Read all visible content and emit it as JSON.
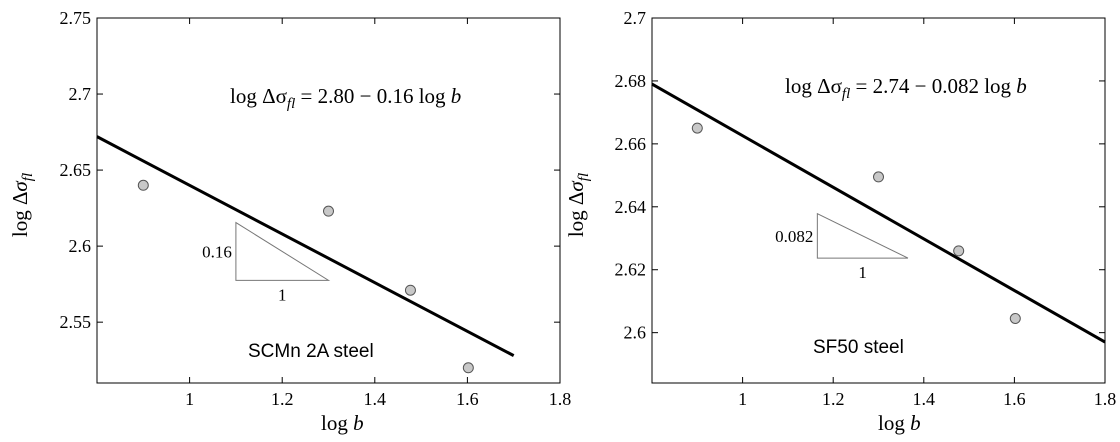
{
  "chart_data": [
    {
      "type": "scatter",
      "title": "",
      "xlabel": "log b",
      "ylabel": "log Δσ_fl",
      "xlim": [
        0.8,
        1.8
      ],
      "ylim": [
        2.51,
        2.75
      ],
      "xticks": [
        1,
        1.2,
        1.4,
        1.6,
        1.8
      ],
      "yticks": [
        2.55,
        2.6,
        2.65,
        2.7,
        2.75
      ],
      "xtick_labels": [
        "1",
        "1.2",
        "1.4",
        "1.6",
        "1.8"
      ],
      "ytick_labels": [
        "2.55",
        "2.6",
        "2.65",
        "2.7",
        "2.75"
      ],
      "points": [
        {
          "x": 0.9,
          "y": 2.64
        },
        {
          "x": 1.3,
          "y": 2.623
        },
        {
          "x": 1.477,
          "y": 2.571
        },
        {
          "x": 1.602,
          "y": 2.52
        }
      ],
      "fit_line": {
        "x": [
          0.8,
          1.7
        ],
        "y": [
          2.672,
          2.528
        ]
      },
      "equation": {
        "lhs": "log Δσ",
        "sub": "fl",
        "rhs": " = 2.80 − 0.16 log ",
        "var": "b"
      },
      "slope_triangle": {
        "x0": 1.1,
        "x1": 1.3,
        "y_top": 2.6155,
        "y_base": 2.5775,
        "rise_label": "0.16",
        "run_label": "1"
      },
      "annotation": "SCMn 2A steel",
      "grid": false
    },
    {
      "type": "scatter",
      "title": "",
      "xlabel": "log b",
      "ylabel": "log Δσ_fl",
      "xlim": [
        0.8,
        1.8
      ],
      "ylim": [
        2.584,
        2.7
      ],
      "xticks": [
        1,
        1.2,
        1.4,
        1.6,
        1.8
      ],
      "yticks": [
        2.6,
        2.62,
        2.64,
        2.66,
        2.68,
        2.7
      ],
      "xtick_labels": [
        "1",
        "1.2",
        "1.4",
        "1.6",
        "1.8"
      ],
      "ytick_labels": [
        "2.6",
        "2.62",
        "2.64",
        "2.66",
        "2.68",
        "2.7"
      ],
      "points": [
        {
          "x": 0.9,
          "y": 2.665
        },
        {
          "x": 1.3,
          "y": 2.6495
        },
        {
          "x": 1.477,
          "y": 2.626
        },
        {
          "x": 1.602,
          "y": 2.6045
        }
      ],
      "fit_line": {
        "x": [
          0.8,
          1.8
        ],
        "y": [
          2.679,
          2.597
        ]
      },
      "equation": {
        "lhs": "log Δσ",
        "sub": "fl",
        "rhs": " = 2.74 − 0.082 log ",
        "var": "b"
      },
      "slope_triangle": {
        "x0": 1.165,
        "x1": 1.365,
        "y_top": 2.6378,
        "y_base": 2.6237,
        "rise_label": "0.082",
        "run_label": "1"
      },
      "annotation": "SF50 steel",
      "grid": false
    }
  ]
}
